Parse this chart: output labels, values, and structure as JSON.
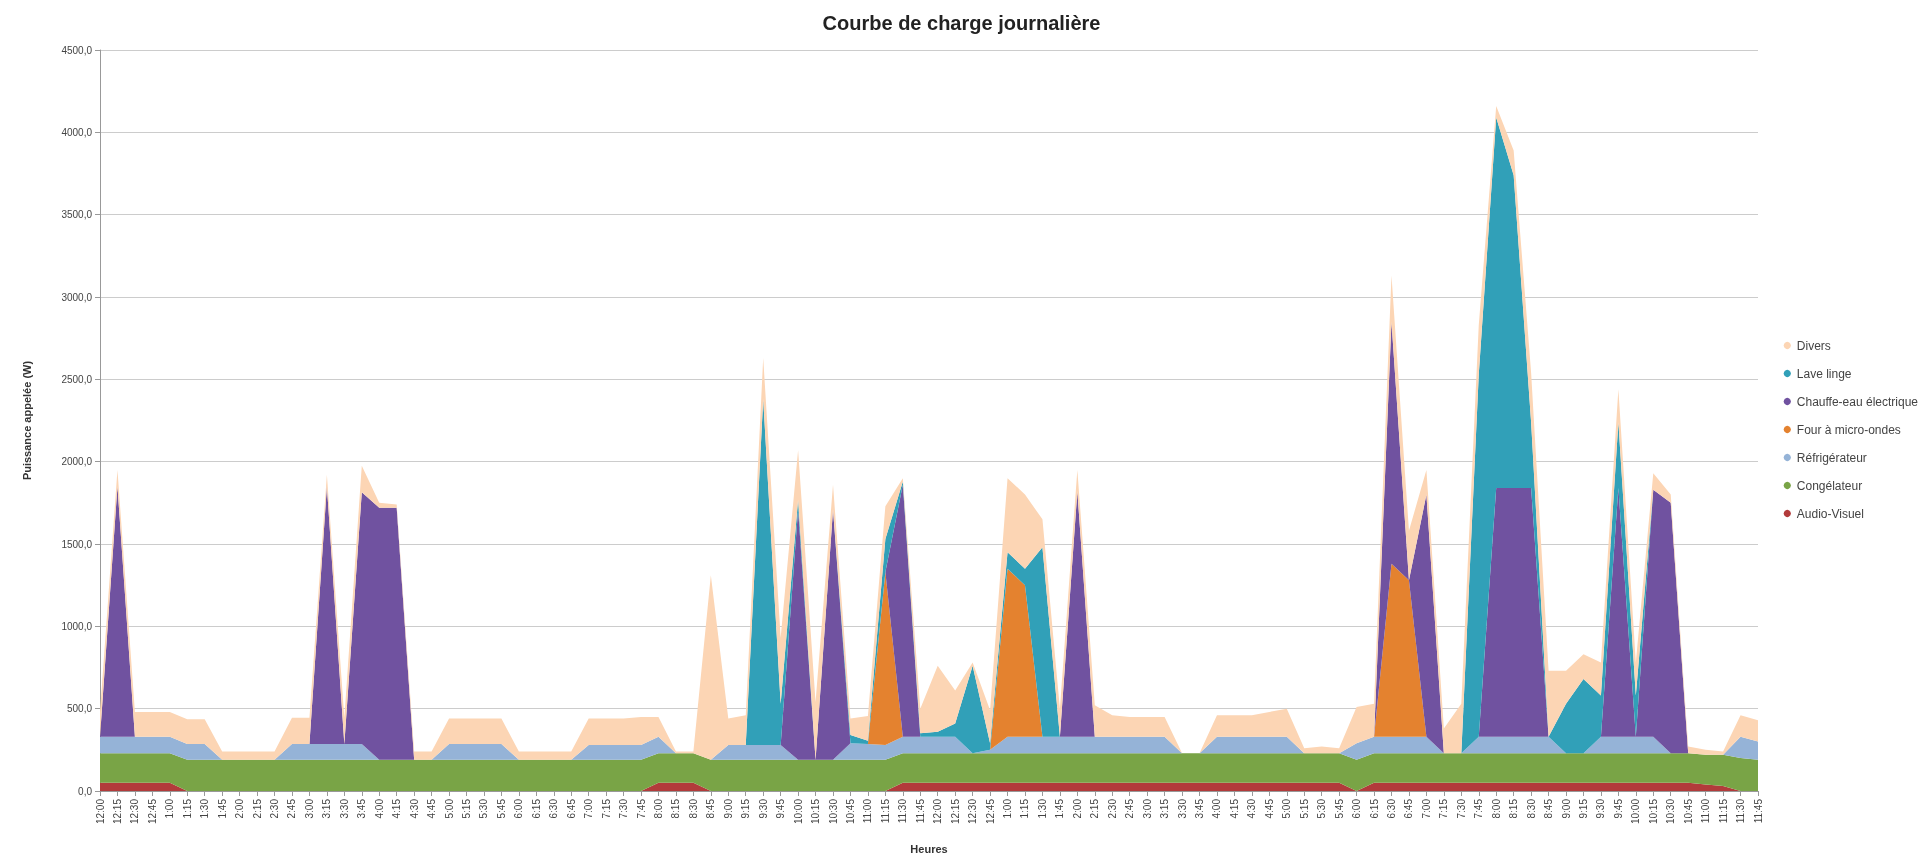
{
  "chart_data": {
    "type": "area",
    "stacked": true,
    "title": "Courbe de charge journalière",
    "xlabel": "Heures",
    "ylabel": "Puissance appelée (W)",
    "categories": [
      "12:00",
      "12:15",
      "12:30",
      "12:45",
      "1:00",
      "1:15",
      "1:30",
      "1:45",
      "2:00",
      "2:15",
      "2:30",
      "2:45",
      "3:00",
      "3:15",
      "3:30",
      "3:45",
      "4:00",
      "4:15",
      "4:30",
      "4:45",
      "5:00",
      "5:15",
      "5:30",
      "5:45",
      "6:00",
      "6:15",
      "6:30",
      "6:45",
      "7:00",
      "7:15",
      "7:30",
      "7:45",
      "8:00",
      "8:15",
      "8:30",
      "8:45",
      "9:00",
      "9:15",
      "9:30",
      "9:45",
      "10:00",
      "10:15",
      "10:30",
      "10:45",
      "11:00",
      "11:15",
      "11:30",
      "11:45",
      "12:00",
      "12:15",
      "12:30",
      "12:45",
      "1:00",
      "1:15",
      "1:30",
      "1:45",
      "2:00",
      "2:15",
      "2:30",
      "2:45",
      "3:00",
      "3:15",
      "3:30",
      "3:45",
      "4:00",
      "4:15",
      "4:30",
      "4:45",
      "5:00",
      "5:15",
      "5:30",
      "5:45",
      "6:00",
      "6:15",
      "6:30",
      "6:45",
      "7:00",
      "7:15",
      "7:30",
      "7:45",
      "8:00",
      "8:15",
      "8:30",
      "8:45",
      "9:00",
      "9:15",
      "9:30",
      "9:45",
      "10:00",
      "10:15",
      "10:30",
      "10:45",
      "11:00",
      "11:15",
      "11:30",
      "11:45"
    ],
    "series": [
      {
        "name": "Audio-Visuel",
        "color": "#b23b3b",
        "values": [
          50,
          50,
          50,
          50,
          50,
          0,
          0,
          0,
          0,
          0,
          0,
          0,
          0,
          0,
          0,
          0,
          0,
          0,
          0,
          0,
          0,
          0,
          0,
          0,
          0,
          0,
          0,
          0,
          0,
          0,
          0,
          0,
          50,
          50,
          50,
          0,
          0,
          0,
          0,
          0,
          0,
          0,
          0,
          0,
          0,
          0,
          50,
          50,
          50,
          50,
          50,
          50,
          50,
          50,
          50,
          50,
          50,
          50,
          50,
          50,
          50,
          50,
          50,
          50,
          50,
          50,
          50,
          50,
          50,
          50,
          50,
          50,
          0,
          50,
          50,
          50,
          50,
          50,
          50,
          50,
          50,
          50,
          50,
          50,
          50,
          50,
          50,
          50,
          50,
          50,
          50,
          50,
          40,
          30,
          0,
          0
        ]
      },
      {
        "name": "Congélateur",
        "color": "#79a446",
        "values": [
          180,
          180,
          180,
          180,
          180,
          190,
          190,
          190,
          190,
          190,
          190,
          190,
          190,
          190,
          190,
          190,
          190,
          190,
          190,
          190,
          190,
          190,
          190,
          190,
          190,
          190,
          190,
          190,
          190,
          190,
          190,
          190,
          180,
          180,
          180,
          190,
          190,
          190,
          190,
          190,
          190,
          190,
          190,
          190,
          190,
          190,
          180,
          180,
          180,
          180,
          180,
          180,
          180,
          180,
          180,
          180,
          180,
          180,
          180,
          180,
          180,
          180,
          180,
          180,
          180,
          180,
          180,
          180,
          180,
          180,
          180,
          180,
          190,
          180,
          180,
          180,
          180,
          180,
          180,
          180,
          180,
          180,
          180,
          180,
          180,
          180,
          180,
          180,
          180,
          180,
          180,
          180,
          180,
          190,
          200,
          190
        ]
      },
      {
        "name": "Réfrigérateur",
        "color": "#95b3d7",
        "values": [
          100,
          100,
          100,
          100,
          100,
          95,
          95,
          0,
          0,
          0,
          0,
          95,
          95,
          95,
          95,
          95,
          0,
          0,
          0,
          0,
          95,
          95,
          95,
          95,
          0,
          0,
          0,
          0,
          90,
          90,
          90,
          90,
          100,
          0,
          0,
          0,
          90,
          90,
          90,
          90,
          0,
          0,
          0,
          100,
          95,
          90,
          100,
          100,
          100,
          100,
          0,
          20,
          100,
          100,
          100,
          100,
          100,
          100,
          100,
          100,
          100,
          100,
          0,
          0,
          100,
          100,
          100,
          100,
          100,
          0,
          0,
          0,
          100,
          100,
          100,
          100,
          100,
          0,
          0,
          100,
          100,
          100,
          100,
          100,
          0,
          0,
          100,
          100,
          100,
          100,
          0,
          0,
          0,
          0,
          130,
          110
        ]
      },
      {
        "name": "Four à micro-ondes",
        "color": "#e4822f",
        "values": [
          0,
          0,
          0,
          0,
          0,
          0,
          0,
          0,
          0,
          0,
          0,
          0,
          0,
          0,
          0,
          0,
          0,
          0,
          0,
          0,
          0,
          0,
          0,
          0,
          0,
          0,
          0,
          0,
          0,
          0,
          0,
          0,
          0,
          0,
          0,
          0,
          0,
          0,
          0,
          0,
          0,
          0,
          0,
          0,
          0,
          1050,
          0,
          0,
          0,
          0,
          0,
          0,
          1020,
          920,
          0,
          0,
          0,
          0,
          0,
          0,
          0,
          0,
          0,
          0,
          0,
          0,
          0,
          0,
          0,
          0,
          0,
          0,
          0,
          0,
          1050,
          950,
          0,
          0,
          0,
          0,
          0,
          0,
          0,
          0,
          0,
          0,
          0,
          0,
          0,
          0,
          0,
          0,
          0,
          0,
          0,
          0
        ]
      },
      {
        "name": "Chauffe-eau électrique",
        "color": "#7052a0",
        "values": [
          0,
          1520,
          0,
          0,
          0,
          0,
          0,
          0,
          0,
          0,
          0,
          0,
          0,
          1565,
          0,
          1530,
          1530,
          1530,
          0,
          0,
          0,
          0,
          0,
          0,
          0,
          0,
          0,
          0,
          0,
          0,
          0,
          0,
          0,
          0,
          0,
          0,
          0,
          0,
          0,
          0,
          1520,
          0,
          1520,
          0,
          0,
          0,
          1530,
          0,
          0,
          0,
          0,
          0,
          0,
          0,
          0,
          0,
          1490,
          0,
          0,
          0,
          0,
          0,
          0,
          0,
          0,
          0,
          0,
          0,
          0,
          0,
          0,
          0,
          0,
          0,
          1470,
          0,
          1470,
          0,
          0,
          0,
          1510,
          1510,
          1510,
          0,
          0,
          0,
          0,
          1510,
          0,
          1500,
          1520,
          0,
          0,
          0,
          0,
          0
        ]
      },
      {
        "name": "Lave linge",
        "color": "#31a0b8",
        "values": [
          0,
          0,
          0,
          0,
          0,
          0,
          0,
          0,
          0,
          0,
          0,
          0,
          0,
          0,
          0,
          0,
          0,
          0,
          0,
          0,
          0,
          0,
          0,
          0,
          0,
          0,
          0,
          0,
          0,
          0,
          0,
          0,
          0,
          0,
          0,
          0,
          0,
          0,
          2100,
          250,
          60,
          0,
          0,
          50,
          20,
          200,
          20,
          20,
          30,
          80,
          530,
          40,
          100,
          100,
          1150,
          0,
          0,
          0,
          0,
          0,
          0,
          0,
          0,
          0,
          0,
          0,
          0,
          0,
          0,
          0,
          0,
          0,
          0,
          0,
          0,
          0,
          0,
          0,
          0,
          2200,
          2250,
          1900,
          400,
          0,
          300,
          450,
          250,
          400,
          250,
          0,
          0,
          0,
          0,
          0,
          0,
          0
        ]
      },
      {
        "name": "Divers",
        "color": "#fcd5b4",
        "values": [
          150,
          100,
          150,
          150,
          150,
          150,
          150,
          50,
          50,
          50,
          50,
          160,
          160,
          70,
          160,
          160,
          30,
          20,
          50,
          50,
          155,
          155,
          155,
          155,
          50,
          50,
          50,
          50,
          160,
          160,
          160,
          170,
          120,
          10,
          10,
          1120,
          160,
          180,
          250,
          400,
          300,
          350,
          150,
          100,
          150,
          200,
          20,
          150,
          400,
          200,
          20,
          200,
          450,
          450,
          170,
          170,
          130,
          190,
          130,
          120,
          120,
          120,
          0,
          0,
          130,
          130,
          130,
          150,
          170,
          30,
          40,
          30,
          220,
          200,
          280,
          300,
          150,
          150,
          300,
          300,
          70,
          150,
          300,
          400,
          200,
          150,
          200,
          200,
          200,
          100,
          50,
          40,
          30,
          20,
          130,
          130
        ]
      }
    ],
    "ylim": [
      0,
      4500
    ],
    "yticks": [
      {
        "value": 0,
        "label": "0,0"
      },
      {
        "value": 500,
        "label": "500,0"
      },
      {
        "value": 1000,
        "label": "1000,0"
      },
      {
        "value": 1500,
        "label": "1500,0"
      },
      {
        "value": 2000,
        "label": "2000,0"
      },
      {
        "value": 2500,
        "label": "2500,0"
      },
      {
        "value": 3000,
        "label": "3000,0"
      },
      {
        "value": 3500,
        "label": "3500,0"
      },
      {
        "value": 4000,
        "label": "4000,0"
      },
      {
        "value": 4500,
        "label": "4500,0"
      }
    ],
    "grid": "y",
    "legend": "right"
  }
}
